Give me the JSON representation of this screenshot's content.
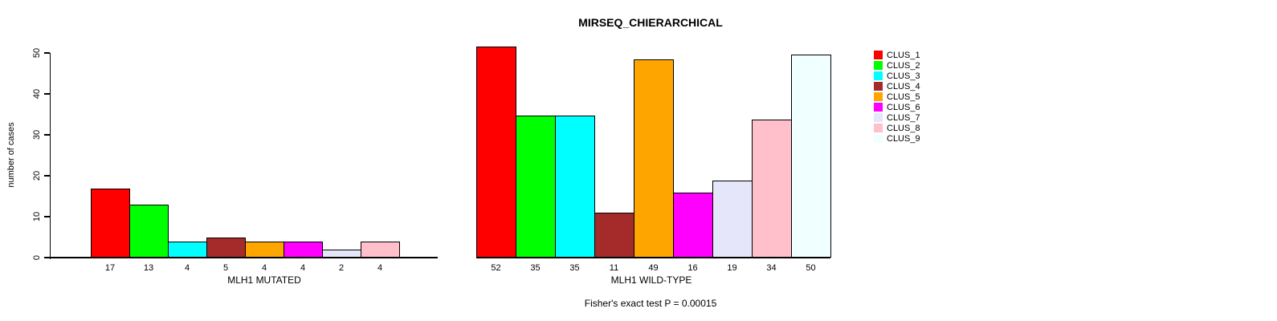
{
  "title": "MIRSEQ_CHIERARCHICAL",
  "chart_data": {
    "type": "bar",
    "title": "MIRSEQ_CHIERARCHICAL",
    "ylabel": "number of cases",
    "xlabel": "",
    "ylim": [
      0,
      50
    ],
    "yticks": [
      0,
      10,
      20,
      30,
      40,
      50
    ],
    "grid": false,
    "legend_position": "top-right",
    "categories": [
      "CLUS_1",
      "CLUS_2",
      "CLUS_3",
      "CLUS_4",
      "CLUS_5",
      "CLUS_6",
      "CLUS_7",
      "CLUS_8",
      "CLUS_9"
    ],
    "colors": [
      "#ff0000",
      "#00ff00",
      "#00ffff",
      "#a52a2a",
      "#ffa500",
      "#ff00ff",
      "#e6e6fa",
      "#ffc0cb",
      "#f0ffff"
    ],
    "groups": [
      {
        "label": "MLH1 MUTATED",
        "values": [
          17,
          13,
          4,
          5,
          4,
          4,
          2,
          4,
          0
        ]
      },
      {
        "label": "MLH1 WILD-TYPE",
        "values": [
          52,
          35,
          35,
          11,
          49,
          16,
          19,
          34,
          50
        ]
      }
    ],
    "annotation": "Fisher's exact test P = 0.00015"
  }
}
